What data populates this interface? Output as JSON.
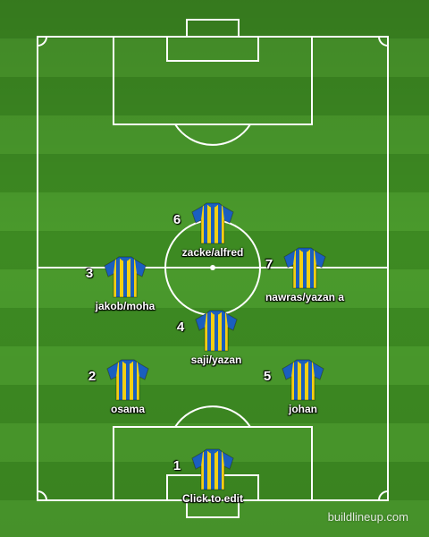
{
  "kit": {
    "primary": "#f2cf14",
    "secondary": "#1a5fbf",
    "sleeve": "#1a5fbf"
  },
  "pitch": {
    "grass_dark": "#3d8a22",
    "grass_light": "#4a9a2c",
    "line_color": "#ffffff"
  },
  "players": [
    {
      "number": "6",
      "name": "zacke/alfred"
    },
    {
      "number": "3",
      "name": "jakob/moha"
    },
    {
      "number": "7",
      "name": "nawras/yazan a"
    },
    {
      "number": "4",
      "name": "saji/yazan"
    },
    {
      "number": "2",
      "name": "osama"
    },
    {
      "number": "5",
      "name": "johan"
    },
    {
      "number": "1",
      "name": "Click to edit"
    }
  ],
  "watermark": "buildlineup.com"
}
